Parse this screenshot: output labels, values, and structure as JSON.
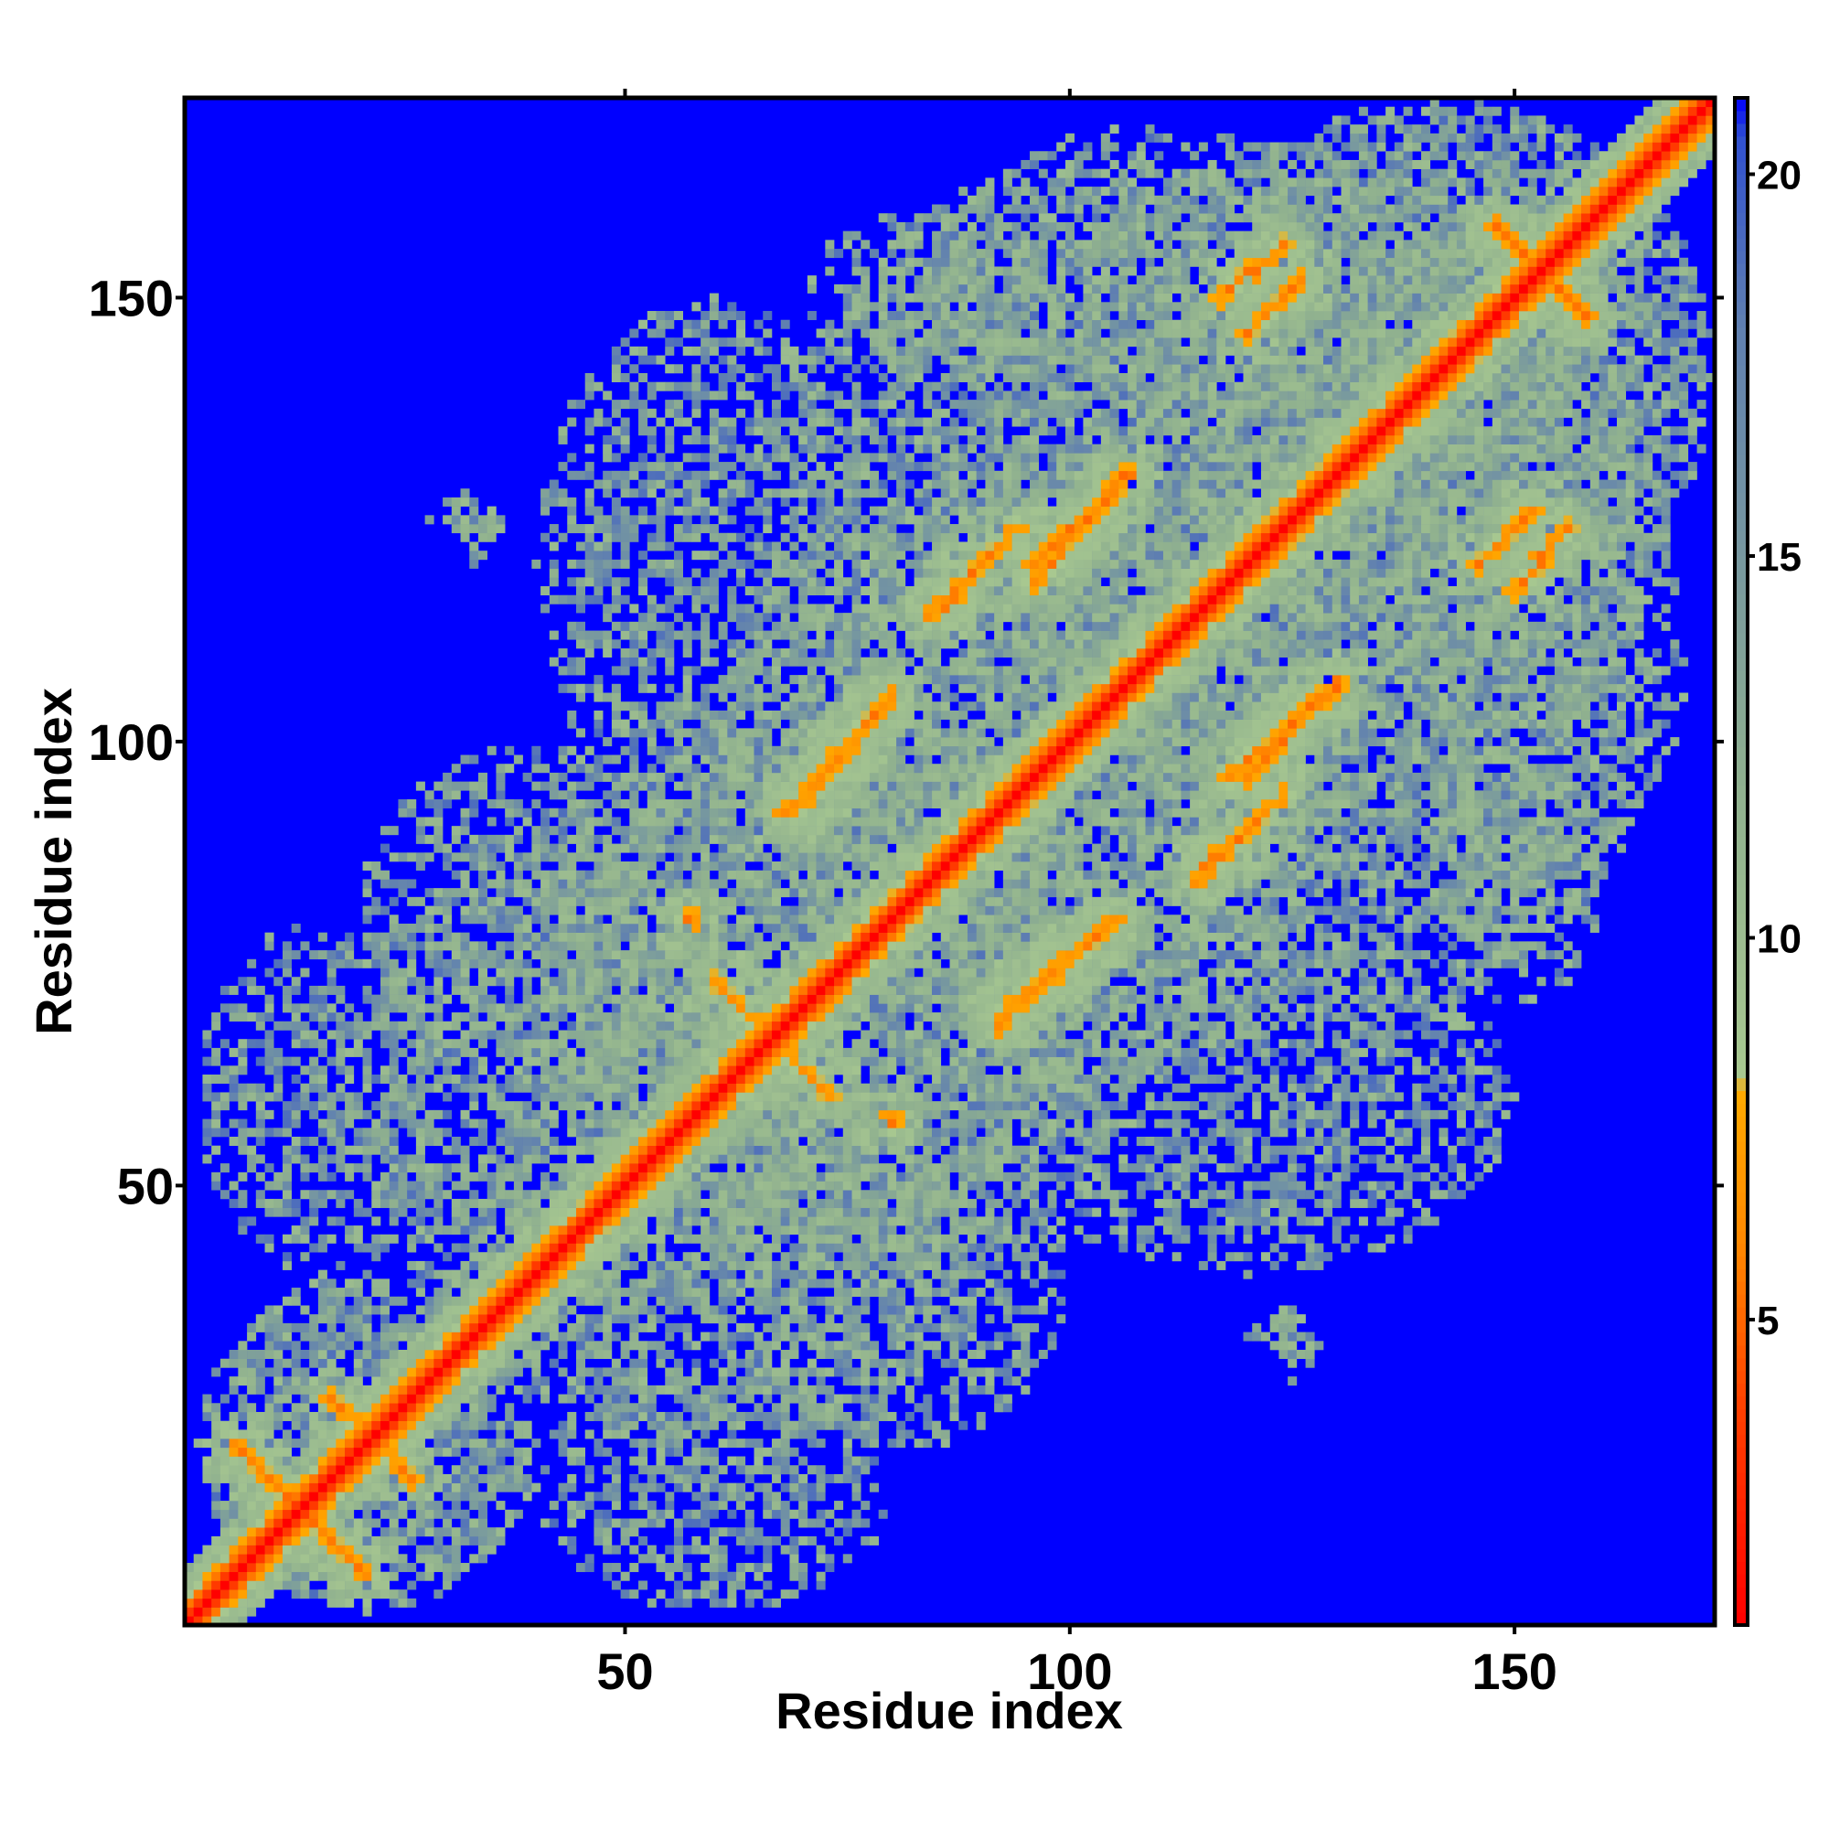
{
  "chart_data": {
    "type": "heatmap",
    "title": "",
    "xlabel": "Residue index",
    "ylabel": "Residue index",
    "n_residues": 172,
    "xlim": [
      1,
      172
    ],
    "ylim": [
      1,
      172
    ],
    "x_ticks": [
      50,
      100,
      150
    ],
    "y_ticks": [
      50,
      100,
      150
    ],
    "colorbar": {
      "ticks": [
        5,
        10,
        15,
        20
      ],
      "range": [
        1,
        21
      ],
      "stops": [
        {
          "value": 1,
          "color": "#ff0000"
        },
        {
          "value": 4,
          "color": "#ff4400"
        },
        {
          "value": 6,
          "color": "#ff8800"
        },
        {
          "value": 8,
          "color": "#ffaa00"
        },
        {
          "value": 8.2,
          "color": "#a8c890"
        },
        {
          "value": 12,
          "color": "#8fb08f"
        },
        {
          "value": 18,
          "color": "#6080b0"
        },
        {
          "value": 20.5,
          "color": "#3050d0"
        },
        {
          "value": 21,
          "color": "#0000ff"
        }
      ]
    },
    "colors": {
      "background": "#0000ff",
      "diagonal": "#ff0000",
      "near": "#ff8c00",
      "medium": "#9cbf8c",
      "far": "#0000ff"
    },
    "cutoff": 21,
    "sheet_contacts": [
      {
        "from": [
          6,
          21
        ],
        "to": [
          21,
          6
        ],
        "kind": "antiparallel"
      },
      {
        "from": [
          24,
          19
        ],
        "to": [
          26,
          17
        ],
        "kind": "antiparallel"
      },
      {
        "from": [
          60,
          73
        ],
        "to": [
          66,
          67
        ],
        "kind": "antiparallel"
      },
      {
        "from": [
          69,
          92
        ],
        "to": [
          80,
          105
        ],
        "kind": "parallel"
      },
      {
        "from": [
          92,
          68
        ],
        "to": [
          105,
          80
        ],
        "kind": "parallel"
      },
      {
        "from": [
          85,
          115
        ],
        "to": [
          94,
          124
        ],
        "kind": "parallel"
      },
      {
        "from": [
          96,
          120
        ],
        "to": [
          107,
          130
        ],
        "kind": "parallel"
      },
      {
        "from": [
          118,
          96
        ],
        "to": [
          130,
          106
        ],
        "kind": "parallel"
      },
      {
        "from": [
          120,
          146
        ],
        "to": [
          126,
          152
        ],
        "kind": "parallel"
      },
      {
        "from": [
          150,
          117
        ],
        "to": [
          156,
          124
        ],
        "kind": "parallel"
      },
      {
        "from": [
          148,
          158
        ],
        "to": [
          158,
          148
        ],
        "kind": "antiparallel"
      },
      {
        "from": [
          114,
          84
        ],
        "to": [
          116,
          87
        ],
        "kind": "cluster"
      },
      {
        "from": [
          80,
          57
        ],
        "to": [
          80,
          58
        ],
        "kind": "cluster"
      }
    ],
    "packing_regions": [
      {
        "x": [
          2,
          40
        ],
        "y": [
          2,
          40
        ]
      },
      {
        "x": [
          2,
          30
        ],
        "y": [
          40,
          80
        ]
      },
      {
        "x": [
          20,
          60
        ],
        "y": [
          60,
          100
        ]
      },
      {
        "x": [
          30,
          90
        ],
        "y": [
          20,
          70
        ]
      },
      {
        "x": [
          40,
          110
        ],
        "y": [
          40,
          100
        ]
      },
      {
        "x": [
          60,
          130
        ],
        "y": [
          70,
          130
        ]
      },
      {
        "x": [
          70,
          130
        ],
        "y": [
          100,
          165
        ]
      },
      {
        "x": [
          90,
          150
        ],
        "y": [
          40,
          80
        ]
      },
      {
        "x": [
          110,
          170
        ],
        "y": [
          80,
          140
        ]
      },
      {
        "x": [
          120,
          172
        ],
        "y": [
          110,
          172
        ]
      },
      {
        "x": [
          100,
          160
        ],
        "y": [
          130,
          168
        ]
      },
      {
        "x": [
          140,
          160
        ],
        "y": [
          70,
          100
        ]
      },
      {
        "x": [
          28,
          36
        ],
        "y": [
          122,
          128
        ]
      },
      {
        "x": [
          120,
          128
        ],
        "y": [
          30,
          36
        ]
      }
    ]
  }
}
